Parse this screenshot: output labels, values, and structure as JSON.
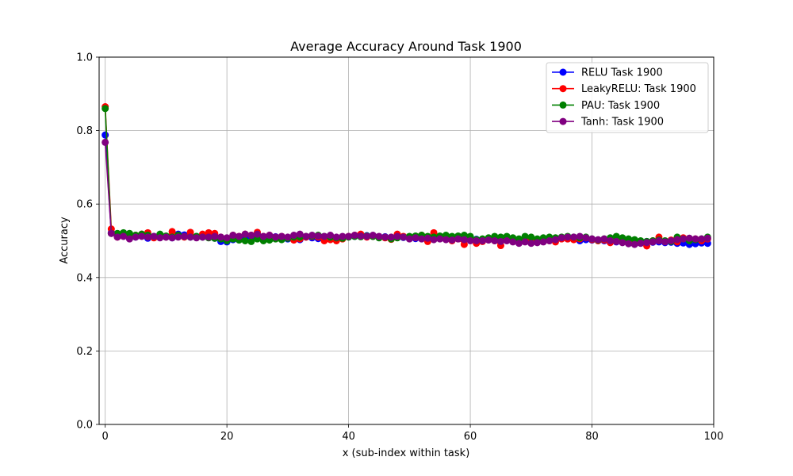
{
  "chart_data": {
    "type": "line",
    "title": "Average Accuracy Around Task 1900",
    "xlabel": "x (sub-index within task)",
    "ylabel": "Accuracy",
    "xlim": [
      -1,
      100
    ],
    "ylim": [
      0,
      1
    ],
    "xticks": [
      0,
      20,
      40,
      60,
      80,
      100
    ],
    "yticks": [
      0.0,
      0.2,
      0.4,
      0.6,
      0.8,
      1.0
    ],
    "xtick_labels": [
      "0",
      "20",
      "40",
      "60",
      "80",
      "100"
    ],
    "ytick_labels": [
      "0.0",
      "0.2",
      "0.4",
      "0.6",
      "0.8",
      "1.0"
    ],
    "grid": true,
    "legend_position": "top-right",
    "series": [
      {
        "name": "RELU Task 1900",
        "color": "#0000ff",
        "values": [
          0.788,
          0.522,
          0.512,
          0.515,
          0.518,
          0.51,
          0.513,
          0.507,
          0.512,
          0.515,
          0.51,
          0.508,
          0.518,
          0.516,
          0.51,
          0.512,
          0.51,
          0.514,
          0.507,
          0.498,
          0.497,
          0.503,
          0.505,
          0.508,
          0.51,
          0.513,
          0.507,
          0.509,
          0.511,
          0.507,
          0.505,
          0.504,
          0.503,
          0.51,
          0.508,
          0.506,
          0.51,
          0.512,
          0.508,
          0.509,
          0.511,
          0.512,
          0.513,
          0.514,
          0.512,
          0.51,
          0.511,
          0.508,
          0.51,
          0.509,
          0.507,
          0.506,
          0.508,
          0.505,
          0.506,
          0.507,
          0.506,
          0.508,
          0.507,
          0.506,
          0.505,
          0.504,
          0.503,
          0.505,
          0.504,
          0.502,
          0.505,
          0.503,
          0.504,
          0.5,
          0.502,
          0.504,
          0.505,
          0.503,
          0.504,
          0.506,
          0.505,
          0.504,
          0.5,
          0.503,
          0.502,
          0.501,
          0.5,
          0.498,
          0.497,
          0.499,
          0.498,
          0.496,
          0.497,
          0.498,
          0.496,
          0.497,
          0.495,
          0.496,
          0.493,
          0.494,
          0.49,
          0.492,
          0.494,
          0.493
        ]
      },
      {
        "name": "LeakyRELU: Task 1900",
        "color": "#ff0000",
        "values": [
          0.865,
          0.532,
          0.51,
          0.515,
          0.512,
          0.515,
          0.518,
          0.522,
          0.508,
          0.515,
          0.51,
          0.525,
          0.512,
          0.51,
          0.523,
          0.51,
          0.518,
          0.522,
          0.52,
          0.51,
          0.505,
          0.515,
          0.512,
          0.518,
          0.515,
          0.523,
          0.512,
          0.515,
          0.51,
          0.512,
          0.508,
          0.502,
          0.505,
          0.51,
          0.512,
          0.51,
          0.5,
          0.503,
          0.5,
          0.505,
          0.512,
          0.515,
          0.518,
          0.51,
          0.512,
          0.51,
          0.508,
          0.504,
          0.518,
          0.512,
          0.51,
          0.512,
          0.515,
          0.498,
          0.522,
          0.51,
          0.508,
          0.5,
          0.505,
          0.49,
          0.508,
          0.493,
          0.498,
          0.503,
          0.5,
          0.487,
          0.508,
          0.503,
          0.498,
          0.505,
          0.502,
          0.5,
          0.503,
          0.5,
          0.497,
          0.505,
          0.505,
          0.503,
          0.505,
          0.508,
          0.503,
          0.5,
          0.502,
          0.495,
          0.5,
          0.5,
          0.497,
          0.493,
          0.497,
          0.486,
          0.5,
          0.51,
          0.498,
          0.502,
          0.497,
          0.508,
          0.503,
          0.505,
          0.5,
          0.505
        ]
      },
      {
        "name": "PAU: Task 1900",
        "color": "#008000",
        "values": [
          0.86,
          0.52,
          0.52,
          0.522,
          0.52,
          0.515,
          0.518,
          0.515,
          0.512,
          0.518,
          0.513,
          0.51,
          0.515,
          0.512,
          0.51,
          0.512,
          0.51,
          0.508,
          0.507,
          0.505,
          0.5,
          0.505,
          0.502,
          0.5,
          0.498,
          0.505,
          0.5,
          0.502,
          0.505,
          0.503,
          0.507,
          0.51,
          0.51,
          0.512,
          0.513,
          0.515,
          0.512,
          0.51,
          0.508,
          0.507,
          0.51,
          0.512,
          0.511,
          0.513,
          0.512,
          0.508,
          0.51,
          0.505,
          0.508,
          0.51,
          0.512,
          0.513,
          0.515,
          0.512,
          0.51,
          0.513,
          0.515,
          0.512,
          0.513,
          0.515,
          0.512,
          0.503,
          0.505,
          0.508,
          0.512,
          0.51,
          0.512,
          0.508,
          0.505,
          0.512,
          0.51,
          0.505,
          0.508,
          0.51,
          0.508,
          0.51,
          0.512,
          0.51,
          0.508,
          0.51,
          0.505,
          0.502,
          0.505,
          0.508,
          0.512,
          0.508,
          0.505,
          0.503,
          0.5,
          0.498,
          0.5,
          0.502,
          0.5,
          0.498,
          0.51,
          0.505,
          0.5,
          0.503,
          0.505,
          0.51
        ]
      },
      {
        "name": "Tanh: Task 1900",
        "color": "#800080",
        "values": [
          0.768,
          0.52,
          0.51,
          0.512,
          0.505,
          0.51,
          0.512,
          0.51,
          0.512,
          0.508,
          0.51,
          0.508,
          0.51,
          0.512,
          0.51,
          0.508,
          0.51,
          0.51,
          0.512,
          0.51,
          0.508,
          0.515,
          0.512,
          0.518,
          0.515,
          0.518,
          0.512,
          0.515,
          0.51,
          0.512,
          0.51,
          0.515,
          0.518,
          0.512,
          0.515,
          0.513,
          0.512,
          0.515,
          0.51,
          0.512,
          0.512,
          0.515,
          0.513,
          0.512,
          0.515,
          0.512,
          0.51,
          0.51,
          0.512,
          0.51,
          0.505,
          0.508,
          0.505,
          0.507,
          0.503,
          0.505,
          0.503,
          0.502,
          0.505,
          0.503,
          0.5,
          0.5,
          0.5,
          0.502,
          0.5,
          0.498,
          0.5,
          0.497,
          0.493,
          0.497,
          0.493,
          0.495,
          0.497,
          0.5,
          0.503,
          0.508,
          0.51,
          0.51,
          0.512,
          0.508,
          0.505,
          0.503,
          0.505,
          0.5,
          0.498,
          0.495,
          0.492,
          0.49,
          0.493,
          0.495,
          0.497,
          0.5,
          0.497,
          0.5,
          0.503,
          0.505,
          0.507,
          0.505,
          0.505,
          0.507
        ]
      }
    ]
  }
}
